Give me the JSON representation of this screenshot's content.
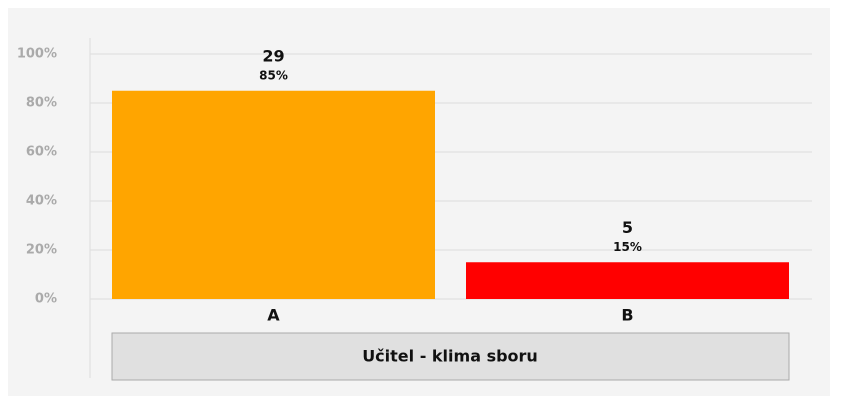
{
  "chart_data": {
    "type": "bar",
    "title": "Učitel - klima sboru",
    "categories": [
      "A",
      "B"
    ],
    "values": [
      85,
      15
    ],
    "value_labels": [
      "85%",
      "15%"
    ],
    "counts": [
      29,
      5
    ],
    "colors": [
      "#ffa500",
      "#ff0000"
    ],
    "ylim": [
      0,
      100
    ],
    "yticks": [
      {
        "value": 0,
        "label": "0%"
      },
      {
        "value": 20,
        "label": "20%"
      },
      {
        "value": 40,
        "label": "40%"
      },
      {
        "value": 60,
        "label": "60%"
      },
      {
        "value": 80,
        "label": "80%"
      },
      {
        "value": 100,
        "label": "100%"
      }
    ],
    "grid": true
  }
}
